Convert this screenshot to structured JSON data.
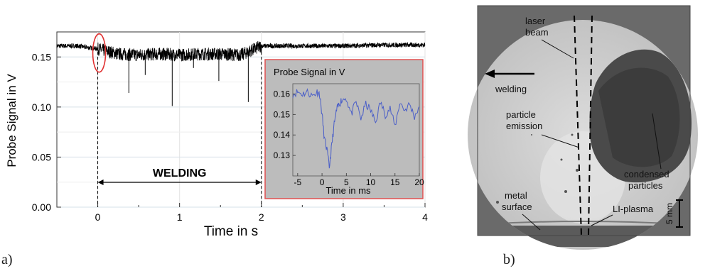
{
  "panel_labels": {
    "a": "a)",
    "b": "b)"
  },
  "chart_data": [
    {
      "type": "line",
      "xlabel": "Time in s",
      "ylabel": "Probe Signal in V",
      "xlim": [
        -0.5,
        4
      ],
      "ylim": [
        0,
        0.175
      ],
      "x_ticks": [
        0,
        1,
        2,
        3,
        4
      ],
      "y_ticks": [
        0.0,
        0.05,
        0.1,
        0.15
      ],
      "y_tick_labels": [
        "0.00",
        "0.05",
        "0.10",
        "0.15"
      ],
      "grid": true,
      "series": [
        {
          "x": [
            -0.5,
            -0.25,
            0,
            0.25,
            0.5,
            0.75,
            1,
            1.25,
            1.5,
            1.75,
            2,
            2.5,
            3,
            3.5,
            4
          ],
          "values": [
            0.161,
            0.161,
            0.158,
            0.153,
            0.152,
            0.153,
            0.152,
            0.153,
            0.153,
            0.152,
            0.161,
            0.161,
            0.161,
            0.162,
            0.162
          ],
          "color": "#000000"
        }
      ],
      "spikes": [
        {
          "x": 0.38,
          "y": 0.114
        },
        {
          "x": 0.91,
          "y": 0.101
        },
        {
          "x": 1.48,
          "y": 0.126
        },
        {
          "x": 1.84,
          "y": 0.105
        },
        {
          "x": 1.17,
          "y": 0.139
        },
        {
          "x": 0.58,
          "y": 0.132
        }
      ],
      "annotations": {
        "welding_label": "WELDING",
        "welding_start_x": 0,
        "welding_end_x": 2,
        "circle_marker_x": 0
      }
    },
    {
      "type": "line",
      "title": "Probe Signal in V",
      "xlabel": "Time in ms",
      "xlim": [
        -6,
        20
      ],
      "ylim": [
        0.12,
        0.165
      ],
      "x_ticks": [
        -5,
        0,
        5,
        10,
        15,
        20
      ],
      "y_ticks": [
        0.13,
        0.14,
        0.15,
        0.16
      ],
      "y_tick_labels": [
        "0.13",
        "0.14",
        "0.15",
        "0.16"
      ],
      "series": [
        {
          "x": [
            -6,
            -5,
            -4,
            -3,
            -2,
            -1,
            -0.5,
            0,
            0.5,
            1,
            1.5,
            2,
            2.5,
            3,
            3.5,
            4,
            5,
            6,
            7,
            8,
            9,
            10,
            11,
            12,
            13,
            14,
            15,
            16,
            17,
            18,
            19,
            20
          ],
          "values": [
            0.16,
            0.161,
            0.16,
            0.161,
            0.159,
            0.161,
            0.16,
            0.15,
            0.138,
            0.133,
            0.124,
            0.135,
            0.145,
            0.152,
            0.155,
            0.157,
            0.158,
            0.15,
            0.156,
            0.148,
            0.155,
            0.152,
            0.146,
            0.156,
            0.15,
            0.153,
            0.144,
            0.156,
            0.152,
            0.155,
            0.149,
            0.154
          ],
          "color": "#4b5fc8"
        }
      ]
    }
  ],
  "photo": {
    "labels": {
      "laser_beam_1": "laser",
      "laser_beam_2": "beam",
      "welding": "welding",
      "particle_emission_1": "particle",
      "particle_emission_2": "emission",
      "condensed_1": "condensed",
      "condensed_2": "particles",
      "metal_1": "metal",
      "metal_2": "surface",
      "li_plasma": "LI-plasma",
      "scale": "5 mm"
    }
  }
}
